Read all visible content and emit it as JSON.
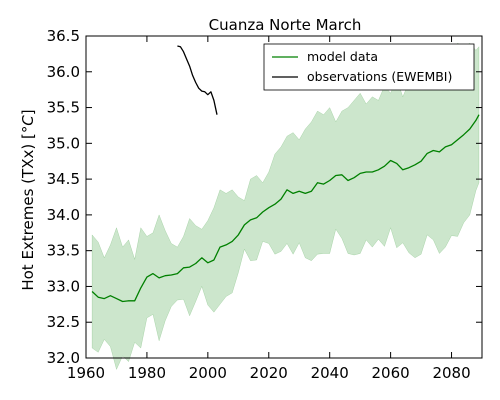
{
  "chart_data": {
    "type": "line",
    "title": "Cuanza Norte March",
    "xlabel": "",
    "ylabel": "Hot Extremes (TXx) [°C]",
    "xlim": [
      1960,
      2090
    ],
    "ylim": [
      32.0,
      36.5
    ],
    "xticks": [
      1960,
      1980,
      2000,
      2020,
      2040,
      2060,
      2080
    ],
    "yticks": [
      "32.0",
      "32.5",
      "33.0",
      "33.5",
      "34.0",
      "34.5",
      "35.0",
      "35.5",
      "36.0",
      "36.5"
    ],
    "grid": false,
    "legend_position": "top-right",
    "series": [
      {
        "name": "model data",
        "color": "#008000",
        "x": [
          1962,
          1964,
          1966,
          1968,
          1970,
          1972,
          1974,
          1976,
          1978,
          1980,
          1982,
          1984,
          1986,
          1988,
          1990,
          1992,
          1994,
          1996,
          1998,
          2000,
          2002,
          2004,
          2006,
          2008,
          2010,
          2012,
          2014,
          2016,
          2018,
          2020,
          2022,
          2024,
          2026,
          2028,
          2030,
          2032,
          2034,
          2036,
          2038,
          2040,
          2042,
          2044,
          2046,
          2048,
          2050,
          2052,
          2054,
          2056,
          2058,
          2060,
          2062,
          2064,
          2066,
          2068,
          2070,
          2072,
          2074,
          2076,
          2078,
          2080,
          2082,
          2084,
          2086,
          2088,
          2089
        ],
        "values": [
          32.93,
          32.85,
          32.83,
          32.87,
          32.83,
          32.79,
          32.8,
          32.8,
          32.98,
          33.13,
          33.18,
          33.12,
          33.15,
          33.16,
          33.18,
          33.26,
          33.27,
          33.32,
          33.4,
          33.33,
          33.37,
          33.55,
          33.58,
          33.63,
          33.72,
          33.86,
          33.93,
          33.96,
          34.04,
          34.1,
          34.15,
          34.22,
          34.35,
          34.3,
          34.33,
          34.3,
          34.33,
          34.45,
          34.43,
          34.48,
          34.55,
          34.56,
          34.48,
          34.52,
          34.58,
          34.6,
          34.6,
          34.63,
          34.68,
          34.76,
          34.72,
          34.63,
          34.66,
          34.7,
          34.75,
          34.86,
          34.9,
          34.88,
          34.95,
          34.98,
          35.05,
          35.12,
          35.2,
          35.32,
          35.4
        ]
      },
      {
        "name": "observations (EWEMBI)",
        "color": "#000000",
        "x": [
          1990,
          1991,
          1992,
          1993,
          1994,
          1995,
          1996,
          1997,
          1998,
          1999,
          2000,
          2001,
          2002,
          2003
        ],
        "values": [
          36.36,
          36.35,
          36.28,
          36.18,
          36.08,
          35.95,
          35.85,
          35.77,
          35.73,
          35.72,
          35.68,
          35.72,
          35.6,
          35.4
        ]
      }
    ],
    "band": {
      "name": "model range",
      "color": "#008000",
      "opacity": 0.2,
      "x": [
        1962,
        1964,
        1966,
        1968,
        1970,
        1972,
        1974,
        1976,
        1978,
        1980,
        1982,
        1984,
        1986,
        1988,
        1990,
        1992,
        1994,
        1996,
        1998,
        2000,
        2002,
        2004,
        2006,
        2008,
        2010,
        2012,
        2014,
        2016,
        2018,
        2020,
        2022,
        2024,
        2026,
        2028,
        2030,
        2032,
        2034,
        2036,
        2038,
        2040,
        2042,
        2044,
        2046,
        2048,
        2050,
        2052,
        2054,
        2056,
        2058,
        2060,
        2062,
        2064,
        2066,
        2068,
        2070,
        2072,
        2074,
        2076,
        2078,
        2080,
        2082,
        2084,
        2086,
        2088,
        2089
      ],
      "upper": [
        33.72,
        33.62,
        33.4,
        33.58,
        33.82,
        33.55,
        33.65,
        33.38,
        33.82,
        33.7,
        33.75,
        34.0,
        33.78,
        33.6,
        33.55,
        33.7,
        33.95,
        33.85,
        33.8,
        33.92,
        34.1,
        34.35,
        34.3,
        34.35,
        34.25,
        34.2,
        34.5,
        34.55,
        34.45,
        34.6,
        34.85,
        34.95,
        35.1,
        35.15,
        35.05,
        35.2,
        35.3,
        35.45,
        35.4,
        35.5,
        35.3,
        35.45,
        35.5,
        35.6,
        35.7,
        35.55,
        35.65,
        35.6,
        35.8,
        35.7,
        35.9,
        35.65,
        35.85,
        36.0,
        36.05,
        36.0,
        36.15,
        36.3,
        36.35,
        36.25,
        36.4,
        36.35,
        36.4,
        36.3,
        36.35
      ]
    }
  },
  "legend": {
    "model_label": "model data",
    "obs_label": "observations (EWEMBI)"
  }
}
